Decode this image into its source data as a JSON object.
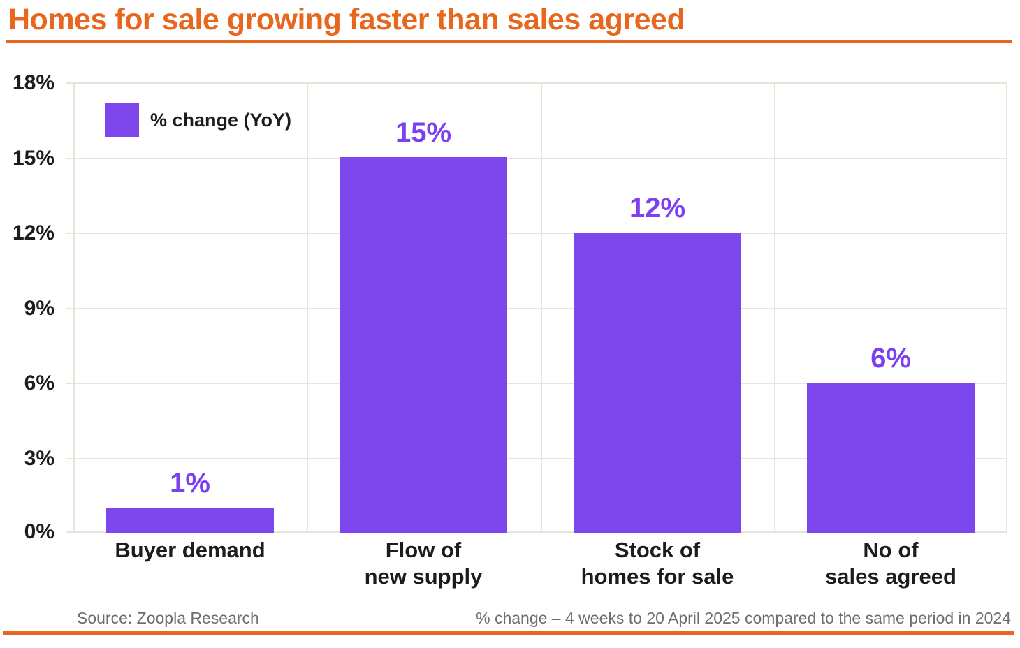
{
  "header": {
    "title": "Homes for sale growing faster than sales agreed"
  },
  "legend": {
    "label": "% change (YoY)"
  },
  "chart_data": {
    "type": "bar",
    "title": "Homes for sale growing faster than sales agreed",
    "categories": [
      "Buyer demand",
      "Flow of\nnew supply",
      "Stock of\nhomes for sale",
      "No of\nsales agreed"
    ],
    "values": [
      1,
      15,
      12,
      6
    ],
    "value_labels": [
      "1%",
      "15%",
      "12%",
      "6%"
    ],
    "series_name": "% change (YoY)",
    "xlabel": "",
    "ylabel": "",
    "ylim": [
      0,
      18
    ],
    "yticks": [
      0,
      3,
      6,
      9,
      12,
      15,
      18
    ],
    "ytick_labels": [
      "0%",
      "3%",
      "6%",
      "9%",
      "12%",
      "15%",
      "18%"
    ],
    "grid": true,
    "legend_position": "top-left"
  },
  "footer": {
    "source": "Source: Zoopla Research",
    "note": "% change – 4 weeks to 20 April 2025 compared to the same period in 2024"
  },
  "colors": {
    "accent_orange": "#e8671f",
    "bar_purple": "#7d47ee",
    "value_label_purple": "#7c3ff2",
    "grid_beige": "#e8e4d8",
    "text_dark": "#1c1c1a",
    "footer_gray": "#6e6e6e",
    "background": "#ffffff"
  }
}
